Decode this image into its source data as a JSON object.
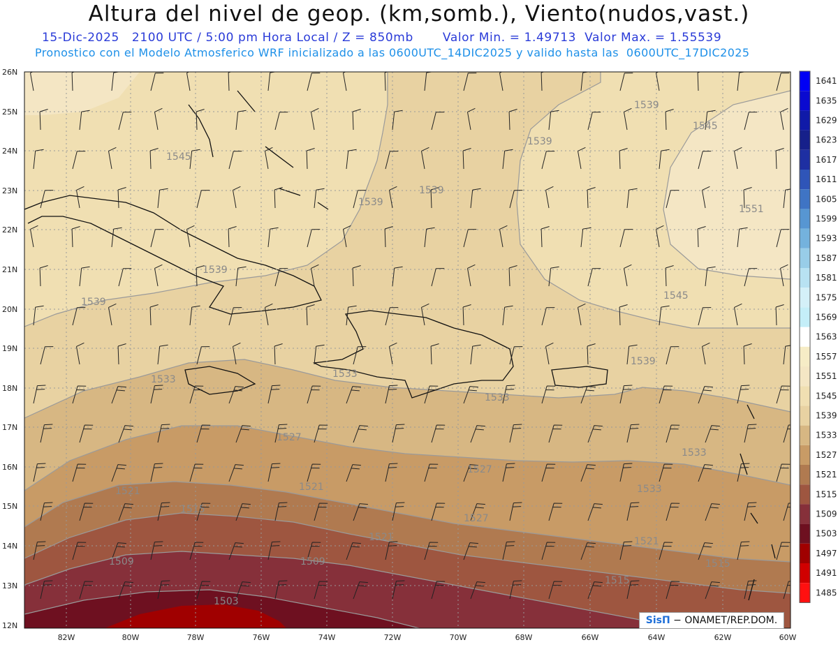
{
  "header": {
    "title": "Altura del nivel de geop. (km,somb.), Viento(nudos,vast.)",
    "date_time": "15-Dic-2025   2100 UTC / 5:00 pm Hora Local / Z = 850mb",
    "min_label": "Valor Min. = 1.49713",
    "max_label": "Valor Max. = 1.55539",
    "model_line": "Pronostico con el Modelo Atmosferico WRF inicializado a las 0600UTC_14DIC2025 y valido hasta las  0600UTC_17DIC2025"
  },
  "map": {
    "lat_labels": [
      "26N",
      "25N",
      "24N",
      "23N",
      "22N",
      "21N",
      "20N",
      "19N",
      "18N",
      "17N",
      "16N",
      "15N",
      "14N",
      "13N",
      "12N"
    ],
    "lon_labels": [
      "82W",
      "80W",
      "78W",
      "76W",
      "74W",
      "72W",
      "70W",
      "68W",
      "66W",
      "64W",
      "62W",
      "60W"
    ],
    "contour_labels": [
      "1545",
      "1539",
      "1539",
      "1539",
      "1539",
      "1545",
      "1551",
      "1539",
      "1539",
      "1545",
      "1539",
      "1533",
      "1533",
      "1533",
      "1533",
      "1527",
      "1527",
      "1533",
      "1521",
      "1521",
      "1527",
      "1515",
      "1521",
      "1521",
      "1515",
      "1509",
      "1509",
      "1515",
      "1503"
    ]
  },
  "colorbar": {
    "levels": [
      "1641",
      "1635",
      "1629",
      "1623",
      "1617",
      "1611",
      "1605",
      "1599",
      "1593",
      "1587",
      "1581",
      "1575",
      "1569",
      "1563",
      "1557",
      "1551",
      "1545",
      "1539",
      "1533",
      "1527",
      "1521",
      "1515",
      "1509",
      "1503",
      "1497",
      "1491",
      "1485"
    ],
    "colors": [
      "#0000f5",
      "#0a0ad0",
      "#101aa8",
      "#16208a",
      "#1e2fa2",
      "#2f55b8",
      "#3f74c4",
      "#5796d2",
      "#74b2dd",
      "#98cde8",
      "#b8e2f2",
      "#d4f0f8",
      "#c4eef8",
      "#ffffff",
      "#f6ecc6",
      "#f4e6c4",
      "#f0dfb2",
      "#e8d2a2",
      "#d7b783",
      "#c89b66",
      "#b07a50",
      "#9e5640",
      "#86303a",
      "#6e1020",
      "#a00000",
      "#d00000",
      "#ff1010"
    ]
  },
  "credit": {
    "brand": "SisΠ",
    "text": " − ONAMET/REP.DOM."
  }
}
